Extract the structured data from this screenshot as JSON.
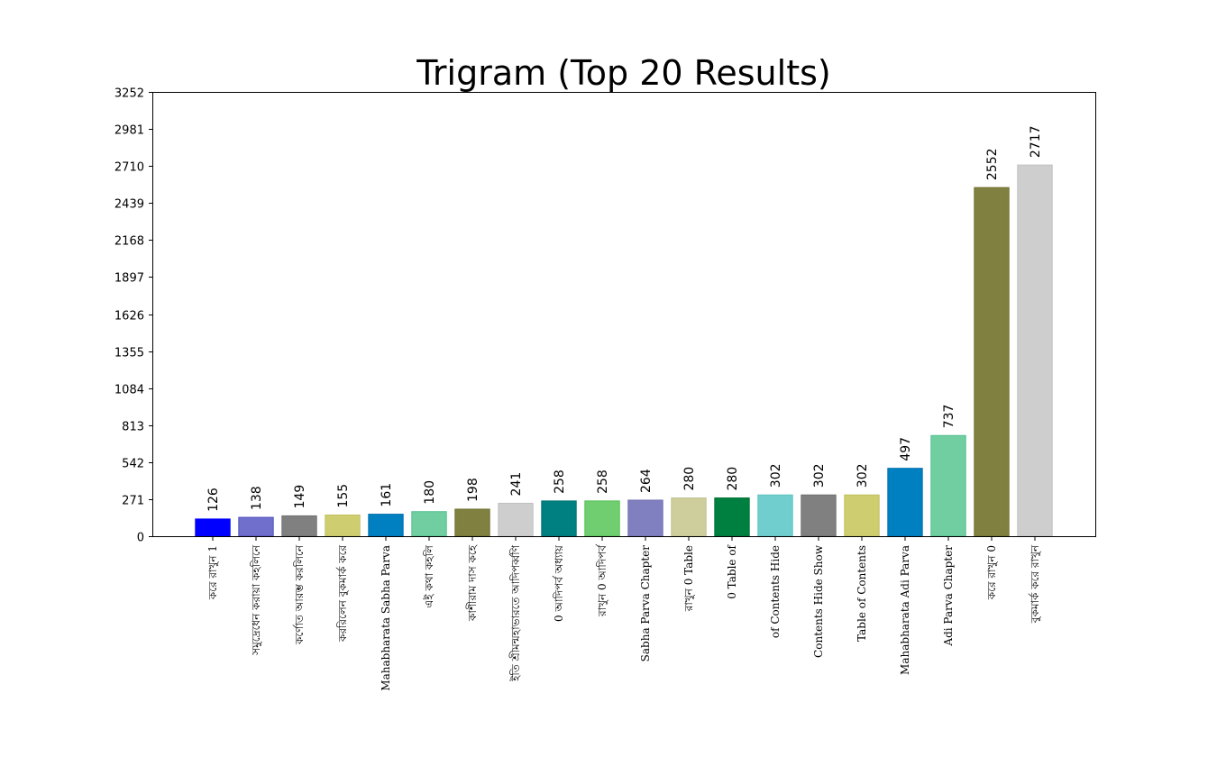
{
  "chart_data": {
    "type": "bar",
    "title": "Trigram (Top 20 Results)",
    "xlabel": "",
    "ylabel": "",
    "ylim": [
      0,
      3252
    ],
    "yticks": [
      0,
      271,
      542,
      813,
      1084,
      1355,
      1626,
      1897,
      2168,
      2439,
      2710,
      2981,
      3252
    ],
    "grid": false,
    "categories": [
      "করে রাখুন 1",
      "সমুদ্রেধেন করায়া কহলিনে",
      "কর্ণোত আরম্ভ করলিনে",
      "কররিলেন বুকমার্ক করে",
      "Mahabharata Sabha Parva",
      "এই কথা কহলি",
      "কাশীরাম দাস কহে",
      "ইতি শ্রীমন্মহাভারতে আদিপর্ব্বণি",
      "0 আদিপর্ব অধ্যায়",
      "রাখুন 0 আদিপর্ব",
      "Sabha Parva Chapter",
      "রাখুন 0 Table",
      "0 Table of",
      "of Contents Hide",
      "Contents Hide Show",
      "Table of Contents",
      "Mahabharata Adi Parva",
      "Adi Parva Chapter",
      "করে রাখুন 0",
      "বুকমার্ক করে রাখুন"
    ],
    "values": [
      126,
      138,
      149,
      155,
      161,
      180,
      198,
      241,
      258,
      258,
      264,
      280,
      280,
      302,
      302,
      302,
      497,
      737,
      2552,
      2717
    ],
    "colors": [
      "#0000ff",
      "#7070cc",
      "#808080",
      "#cece70",
      "#0080c0",
      "#70cea0",
      "#808040",
      "#cecece",
      "#008080",
      "#70ce70",
      "#8080c0",
      "#cece9c",
      "#008040",
      "#70cece",
      "#808080",
      "#cece70",
      "#0080c0",
      "#70cea0",
      "#808040",
      "#cecece"
    ],
    "edgecolors": [
      "#0000ff",
      "#5050c0",
      "#707070",
      "#c0c060",
      "#0070b0",
      "#50c090",
      "#707030",
      "#c0c0c0",
      "#007070",
      "#50c050",
      "#7070b0",
      "#c0c090",
      "#007030",
      "#60c0c0",
      "#707070",
      "#c0c060",
      "#0070b0",
      "#50c090",
      "#707030",
      "#c0c0c0"
    ]
  }
}
